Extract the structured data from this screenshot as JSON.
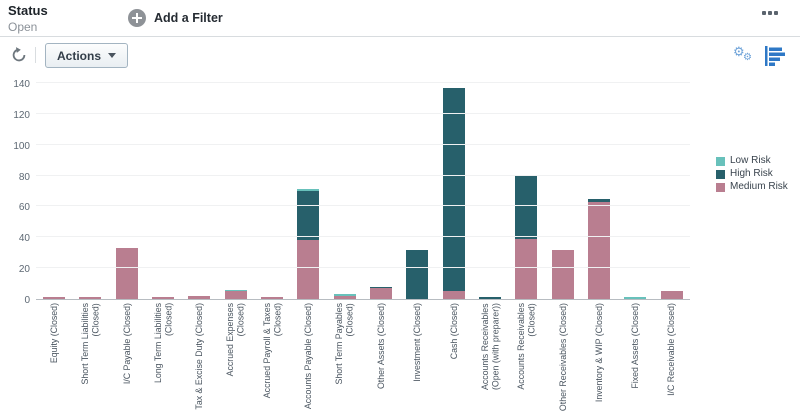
{
  "header": {
    "title": "Status",
    "subtitle": "Open",
    "add_filter_label": "Add a Filter"
  },
  "toolbar": {
    "actions_label": "Actions"
  },
  "icons": {
    "add": "plus-circle-icon",
    "overflow": "ellipsis-menu-icon",
    "refresh": "refresh-icon",
    "caret": "chevron-down-icon",
    "settings": "gears-icon",
    "chart_type": "horizontal-bar-chart-icon"
  },
  "colors": {
    "low_risk": "#68c1bb",
    "high_risk": "#27606b",
    "medium_risk": "#b97e90",
    "axis_line": "#b7bcc1",
    "gridline": "#f0f1f2",
    "icon_blue": "#2e78c6",
    "icon_light_blue": "#6fa3d9"
  },
  "chart_data": {
    "type": "bar",
    "stacked": true,
    "categories": [
      "Equity (Closed)",
      "Short Term Liabilities\n(Closed)",
      "I/C Payable (Closed)",
      "Long Term Liabilities\n(Closed)",
      "Tax & Excise Duty (Closed)",
      "Accrued Expenses\n(Closed)",
      "Accrued Payroll & Taxes\n(Closed)",
      "Accounts Payable (Closed)",
      "Short Term Payables\n(Closed)",
      "Other Assets (Closed)",
      "Investment (Closed)",
      "Cash (Closed)",
      "Accounts Receivables\n(Open (with preparer))",
      "Accounts Receivables\n(Closed)",
      "Other Receivables (Closed)",
      "Inventory & WIP (Closed)",
      "Fixed Assets (Closed)",
      "I/C Receivable (Closed)"
    ],
    "series": [
      {
        "name": "Low Risk",
        "color": "#68c1bb",
        "values": [
          0,
          0,
          0,
          0,
          0,
          1,
          0,
          1,
          1,
          0,
          0,
          0,
          0,
          0,
          0,
          0,
          1,
          0
        ]
      },
      {
        "name": "High Risk",
        "color": "#27606b",
        "values": [
          0,
          0,
          0,
          0,
          0,
          0,
          0,
          32,
          0,
          1,
          32,
          132,
          1,
          41,
          0,
          2,
          0,
          0
        ]
      },
      {
        "name": "Medium Risk",
        "color": "#b97e90",
        "values": [
          1,
          1,
          33,
          1,
          2,
          5,
          1,
          38,
          2,
          7,
          0,
          5,
          0,
          39,
          32,
          63,
          0,
          5
        ]
      }
    ],
    "stack_order_top_to_bottom": [
      "Low Risk",
      "High Risk",
      "Medium Risk"
    ],
    "ylim": [
      0,
      140
    ],
    "ytick_step": 20,
    "grid": true,
    "legend_position": "right"
  }
}
